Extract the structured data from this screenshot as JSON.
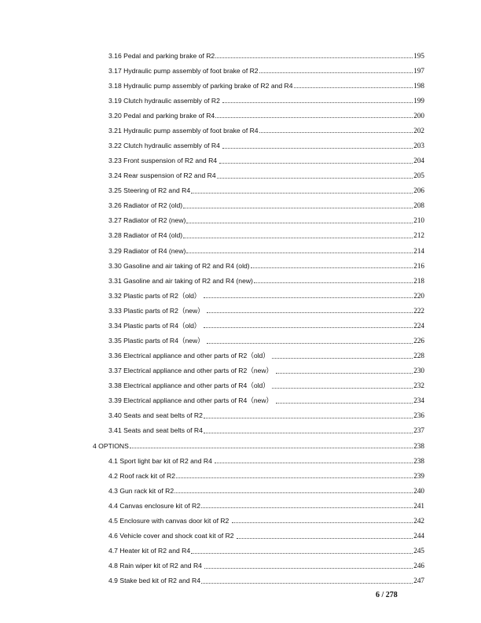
{
  "toc": [
    {
      "level": 2,
      "title": "3.16 Pedal and parking brake of R2",
      "page": "195"
    },
    {
      "level": 2,
      "title": "3.17 Hydraulic pump assembly of foot brake of R2",
      "page": "197"
    },
    {
      "level": 2,
      "title": "3.18 Hydraulic pump assembly of parking brake of R2 and R4",
      "page": "198"
    },
    {
      "level": 2,
      "title": "3.19 Clutch hydraulic assembly of R2 ",
      "page": "199"
    },
    {
      "level": 2,
      "title": "3.20 Pedal and parking brake of R4",
      "page": "200"
    },
    {
      "level": 2,
      "title": "3.21 Hydraulic pump assembly of foot brake of R4",
      "page": "202"
    },
    {
      "level": 2,
      "title": "3.22 Clutch hydraulic assembly of R4 ",
      "page": "203"
    },
    {
      "level": 2,
      "title": "3.23 Front suspension of R2 and R4 ",
      "page": "204"
    },
    {
      "level": 2,
      "title": "3.24 Rear suspension of R2 and R4",
      "page": "205"
    },
    {
      "level": 2,
      "title": "3.25 Steering of R2 and R4",
      "page": "206"
    },
    {
      "level": 2,
      "title": "3.26 Radiator of R2 (old)",
      "page": "208"
    },
    {
      "level": 2,
      "title": "3.27 Radiator of R2 (new)",
      "page": "210"
    },
    {
      "level": 2,
      "title": "3.28 Radiator of R4 (old)",
      "page": "212"
    },
    {
      "level": 2,
      "title": "3.29 Radiator of R4 (new)",
      "page": "214"
    },
    {
      "level": 2,
      "title": "3.30 Gasoline and air taking of R2 and R4 (old)",
      "page": "216"
    },
    {
      "level": 2,
      "title": "3.31 Gasoline and air taking of R2 and R4 (new)",
      "page": "218"
    },
    {
      "level": 2,
      "title": "3.32 Plastic parts of R2（old） ",
      "page": "220"
    },
    {
      "level": 2,
      "title": "3.33 Plastic parts of R2（new） ",
      "page": "222"
    },
    {
      "level": 2,
      "title": "3.34 Plastic parts of R4（old） ",
      "page": "224"
    },
    {
      "level": 2,
      "title": "3.35 Plastic parts of R4（new） ",
      "page": "226"
    },
    {
      "level": 2,
      "title": "3.36 Electrical appliance and other parts of R2（old） ",
      "page": "228"
    },
    {
      "level": 2,
      "title": "3.37 Electrical appliance and other parts of R2（new） ",
      "page": "230"
    },
    {
      "level": 2,
      "title": "3.38 Electrical appliance and other parts of R4（old） ",
      "page": "232"
    },
    {
      "level": 2,
      "title": "3.39 Electrical appliance and other parts of R4（new） ",
      "page": "234"
    },
    {
      "level": 2,
      "title": "3.40 Seats and seat belts of R2",
      "page": "236"
    },
    {
      "level": 2,
      "title": "3.41 Seats and seat belts of R4",
      "page": "237"
    },
    {
      "level": 1,
      "title": "4 OPTIONS",
      "page": "238"
    },
    {
      "level": 2,
      "title": "4.1 Sport light bar kit of R2 and R4 ",
      "page": "238"
    },
    {
      "level": 2,
      "title": "4.2 Roof rack kit of R2",
      "page": "239"
    },
    {
      "level": 2,
      "title": "4.3 Gun rack kit of R2",
      "page": "240"
    },
    {
      "level": 2,
      "title": "4.4 Canvas enclosure kit of R2",
      "page": "241"
    },
    {
      "level": 2,
      "title": "4.5 Enclosure with canvas door kit of R2 ",
      "page": "242"
    },
    {
      "level": 2,
      "title": "4.6 Vehicle cover and shock coat kit of R2 ",
      "page": "244"
    },
    {
      "level": 2,
      "title": "4.7 Heater kit of R2 and R4",
      "page": "245"
    },
    {
      "level": 2,
      "title": "4.8 Rain wiper kit of R2 and R4 ",
      "page": "246"
    },
    {
      "level": 2,
      "title": "4.9 Stake bed kit of R2 and R4",
      "page": "247"
    }
  ],
  "footer": {
    "page_number": "6 / 278"
  }
}
